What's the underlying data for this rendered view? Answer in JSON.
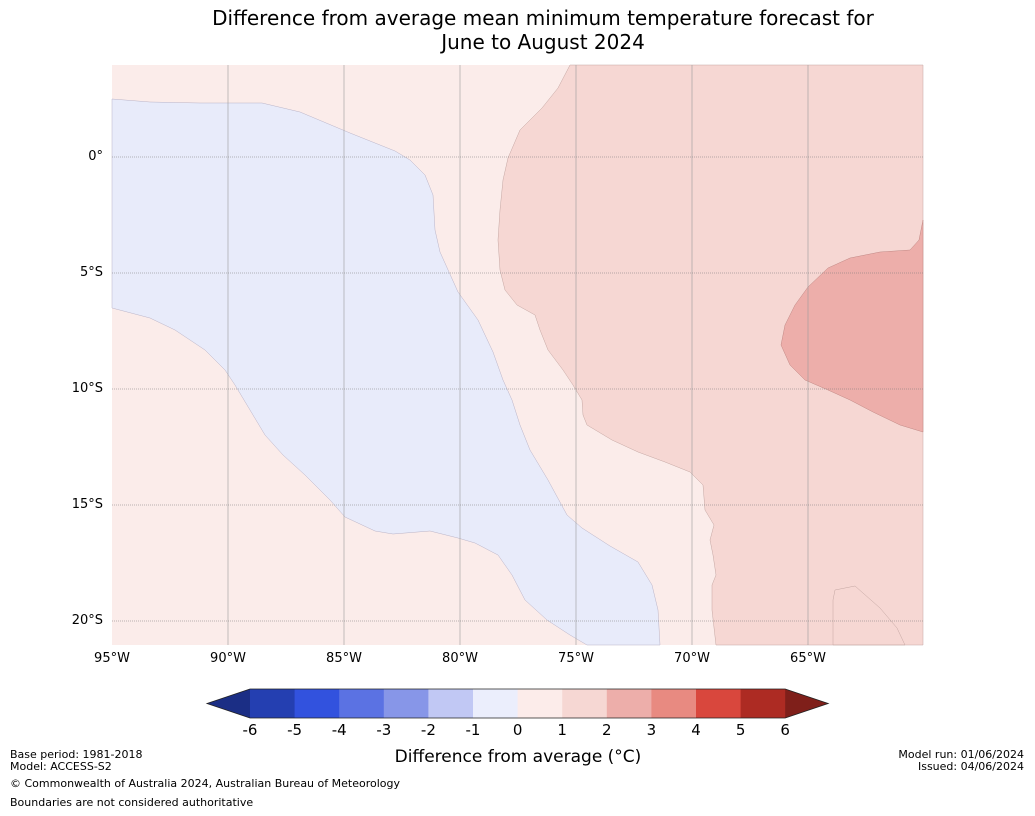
{
  "title": {
    "line1": "Difference from average mean minimum temperature forecast for",
    "line2": "June to August 2024"
  },
  "map": {
    "region": "Eastern Pacific / north-west South America",
    "lon_range": [
      -95,
      -60.5
    ],
    "lat_range": [
      4,
      -21
    ],
    "lat_labels": [
      "0°",
      "5°S",
      "10°S",
      "15°S",
      "20°S"
    ],
    "lon_labels": [
      "95°W",
      "90°W",
      "85°W",
      "80°W",
      "75°W",
      "70°W",
      "65°W"
    ],
    "zones": [
      {
        "name": "minus-1-to-0",
        "color": "#e8ebfa"
      },
      {
        "name": "0-to-1",
        "color": "#fbecea"
      },
      {
        "name": "1-to-2",
        "color": "#f6d7d3"
      },
      {
        "name": "2-to-3",
        "color": "#edaeaa"
      }
    ]
  },
  "colorbar": {
    "ticks": [
      "-6",
      "-5",
      "-4",
      "-3",
      "-2",
      "-1",
      "0",
      "1",
      "2",
      "3",
      "4",
      "5",
      "6"
    ],
    "colors": [
      "#243fb1",
      "#3252de",
      "#5b72e3",
      "#8796e8",
      "#c1c8f4",
      "#ebeefc",
      "#fcecea",
      "#f6d7d3",
      "#edaeaa",
      "#e88a81",
      "#d9473d",
      "#ad2b23"
    ],
    "under_color": "#1b2e85",
    "over_color": "#7f1f1a",
    "label": "Difference from average (°C)"
  },
  "footer": {
    "base_period": "Base period: 1981-2018",
    "model": "Model: ACCESS-S2",
    "copyright": "© Commonwealth of Australia 2024, Australian Bureau of Meteorology",
    "boundaries": "Boundaries are not considered authoritative",
    "model_run": "Model run: 01/06/2024",
    "issued": "Issued: 04/06/2024"
  }
}
